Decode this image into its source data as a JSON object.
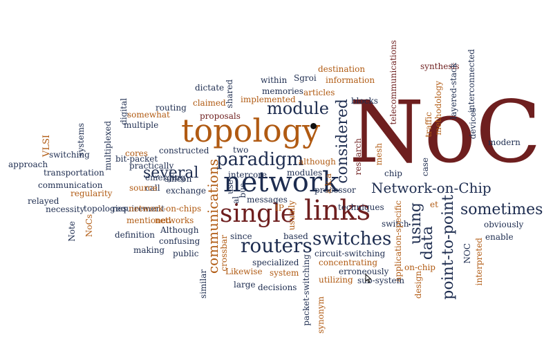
{
  "palette": {
    "navy": "#1d2c4f",
    "maroon": "#6e1f1f",
    "orange": "#b05a12",
    "dark": "#2a2a3a"
  },
  "words": [
    {
      "text": "NoC",
      "color": "maroon"
    },
    {
      "text": "topology",
      "color": "orange"
    },
    {
      "text": "network",
      "color": "navy"
    },
    {
      "text": "links",
      "color": "maroon"
    },
    {
      "text": "single",
      "color": "maroon"
    },
    {
      "text": "routers",
      "color": "navy"
    },
    {
      "text": "switches",
      "color": "navy"
    },
    {
      "text": "communications",
      "color": "orange"
    },
    {
      "text": "point-to-point",
      "color": "navy"
    },
    {
      "text": "Network-on-Chip",
      "color": "navy"
    },
    {
      "text": "paradigm",
      "color": "navy"
    },
    {
      "text": "considered",
      "color": "navy"
    },
    {
      "text": "module",
      "color": "navy"
    },
    {
      "text": "several",
      "color": "navy"
    },
    {
      "text": "sometimes",
      "color": "navy"
    },
    {
      "text": "data",
      "color": "navy"
    },
    {
      "text": "using",
      "color": "navy"
    },
    {
      "text": "approach",
      "color": "navy"
    },
    {
      "text": "VLSI",
      "color": "orange"
    },
    {
      "text": "switching",
      "color": "navy"
    },
    {
      "text": "systems",
      "color": "navy"
    },
    {
      "text": "multiplexed",
      "color": "navy"
    },
    {
      "text": "digital",
      "color": "navy"
    },
    {
      "text": "bit-packet",
      "color": "navy"
    },
    {
      "text": "multiple",
      "color": "navy"
    },
    {
      "text": "somewhat",
      "color": "orange"
    },
    {
      "text": "routing",
      "color": "navy"
    },
    {
      "text": "claimed",
      "color": "orange"
    },
    {
      "text": "dictate",
      "color": "navy"
    },
    {
      "text": "shared",
      "color": "navy"
    },
    {
      "text": "proposals",
      "color": "maroon"
    },
    {
      "text": "memories",
      "color": "navy"
    },
    {
      "text": "within",
      "color": "navy"
    },
    {
      "text": "implemented",
      "color": "orange"
    },
    {
      "text": "Sgroi",
      "color": "navy"
    },
    {
      "text": "articles",
      "color": "orange"
    },
    {
      "text": "destination",
      "color": "orange"
    },
    {
      "text": "information",
      "color": "orange"
    },
    {
      "text": "blocks",
      "color": "navy"
    },
    {
      "text": "telecommunications",
      "color": "maroon"
    },
    {
      "text": "synthesis",
      "color": "maroon"
    },
    {
      "text": "methodology",
      "color": "orange"
    },
    {
      "text": "traffic",
      "color": "orange"
    },
    {
      "text": "layered-stack",
      "color": "navy"
    },
    {
      "text": "interconnected",
      "color": "navy"
    },
    {
      "text": "devices",
      "color": "navy"
    },
    {
      "text": "modern",
      "color": "navy"
    },
    {
      "text": "transportation",
      "color": "navy"
    },
    {
      "text": "communication",
      "color": "navy"
    },
    {
      "text": "practically",
      "color": "navy"
    },
    {
      "text": "cores",
      "color": "orange"
    },
    {
      "text": "constructed",
      "color": "navy"
    },
    {
      "text": "emerging",
      "color": "navy"
    },
    {
      "text": "silicon",
      "color": "navy"
    },
    {
      "text": "two",
      "color": "navy"
    },
    {
      "text": "call",
      "color": "navy"
    },
    {
      "text": "source",
      "color": "orange"
    },
    {
      "text": "exchange",
      "color": "navy"
    },
    {
      "text": "intercore",
      "color": "navy"
    },
    {
      "text": "although",
      "color": "orange"
    },
    {
      "text": "modules",
      "color": "navy"
    },
    {
      "text": "research",
      "color": "maroon"
    },
    {
      "text": "mesh",
      "color": "orange"
    },
    {
      "text": "chip",
      "color": "navy"
    },
    {
      "text": "case",
      "color": "navy"
    },
    {
      "text": "relayed",
      "color": "navy"
    },
    {
      "text": "regularity",
      "color": "orange"
    },
    {
      "text": "necessity",
      "color": "navy"
    },
    {
      "text": "topologies",
      "color": "navy"
    },
    {
      "text": "requirement",
      "color": "navy"
    },
    {
      "text": "network-on-chips",
      "color": "orange"
    },
    {
      "text": "Note",
      "color": "navy"
    },
    {
      "text": "NoCs",
      "color": "orange"
    },
    {
      "text": "mentioned",
      "color": "orange"
    },
    {
      "text": "networks",
      "color": "orange"
    },
    {
      "text": "Although",
      "color": "navy"
    },
    {
      "text": "definition",
      "color": "navy"
    },
    {
      "text": "confusing",
      "color": "navy"
    },
    {
      "text": "making",
      "color": "navy"
    },
    {
      "text": "public",
      "color": "navy"
    },
    {
      "text": "use",
      "color": "navy"
    },
    {
      "text": "al",
      "color": "navy"
    },
    {
      "text": "bus",
      "color": "navy"
    },
    {
      "text": "messages",
      "color": "navy"
    },
    {
      "text": "IP",
      "color": "orange"
    },
    {
      "text": "usually",
      "color": "orange"
    },
    {
      "text": "a.k.a",
      "color": "orange"
    },
    {
      "text": "processor",
      "color": "navy"
    },
    {
      "text": "techniques",
      "color": "navy"
    },
    {
      "text": "switch",
      "color": "navy"
    },
    {
      "text": "application-specific",
      "color": "orange"
    },
    {
      "text": "et",
      "color": "orange"
    },
    {
      "text": "obviously",
      "color": "navy"
    },
    {
      "text": "enable",
      "color": "navy"
    },
    {
      "text": "NOC",
      "color": "navy"
    },
    {
      "text": "interpreted",
      "color": "orange"
    },
    {
      "text": "crossbar",
      "color": "orange"
    },
    {
      "text": "since",
      "color": "navy"
    },
    {
      "text": "based",
      "color": "navy"
    },
    {
      "text": "specialized",
      "color": "navy"
    },
    {
      "text": "circuit-switching",
      "color": "navy"
    },
    {
      "text": "concentrating",
      "color": "orange"
    },
    {
      "text": "Likewise",
      "color": "orange"
    },
    {
      "text": "system",
      "color": "orange"
    },
    {
      "text": "large",
      "color": "navy"
    },
    {
      "text": "decisions",
      "color": "navy"
    },
    {
      "text": "similar",
      "color": "navy"
    },
    {
      "text": "packet-switching",
      "color": "navy"
    },
    {
      "text": "synonym",
      "color": "orange"
    },
    {
      "text": "utilizing",
      "color": "orange"
    },
    {
      "text": "erroneously",
      "color": "navy"
    },
    {
      "text": "sub-system",
      "color": "navy"
    },
    {
      "text": "design",
      "color": "orange"
    },
    {
      "text": "on-chip",
      "color": "orange"
    }
  ]
}
